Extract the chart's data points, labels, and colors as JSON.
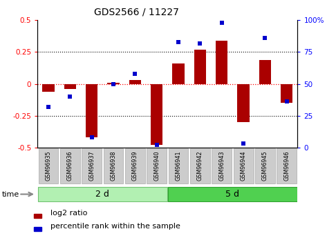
{
  "title": "GDS2566 / 11227",
  "samples": [
    "GSM96935",
    "GSM96936",
    "GSM96937",
    "GSM96938",
    "GSM96939",
    "GSM96940",
    "GSM96941",
    "GSM96942",
    "GSM96943",
    "GSM96944",
    "GSM96945",
    "GSM96946"
  ],
  "log2_ratio": [
    -0.06,
    -0.04,
    -0.42,
    0.01,
    0.03,
    -0.48,
    0.16,
    0.27,
    0.34,
    -0.3,
    0.19,
    -0.15
  ],
  "percentile_rank": [
    32,
    40,
    8,
    50,
    58,
    2,
    83,
    82,
    98,
    3,
    86,
    36
  ],
  "group1_label": "2 d",
  "group2_label": "5 d",
  "group1_count": 6,
  "group2_count": 6,
  "bar_color": "#aa0000",
  "dot_color": "#0000cc",
  "ylim_left": [
    -0.5,
    0.5
  ],
  "ylim_right": [
    0,
    100
  ],
  "yticks_left": [
    -0.5,
    -0.25,
    0.0,
    0.25,
    0.5
  ],
  "yticks_left_labels": [
    "-0.5",
    "-0.25",
    "0",
    "0.25",
    "0.5"
  ],
  "yticks_right": [
    0,
    25,
    50,
    75,
    100
  ],
  "yticks_right_labels": [
    "0",
    "25",
    "50",
    "75",
    "100%"
  ],
  "hline_dotted": [
    -0.25,
    0.25
  ],
  "hline_red": [
    0.0
  ],
  "group1_color": "#b2f0b2",
  "group2_color": "#50d050",
  "legend_items": [
    "log2 ratio",
    "percentile rank within the sample"
  ],
  "time_label": "time",
  "bar_width": 0.55,
  "sample_box_color": "#cccccc",
  "sample_box_edge": "#aaaaaa"
}
